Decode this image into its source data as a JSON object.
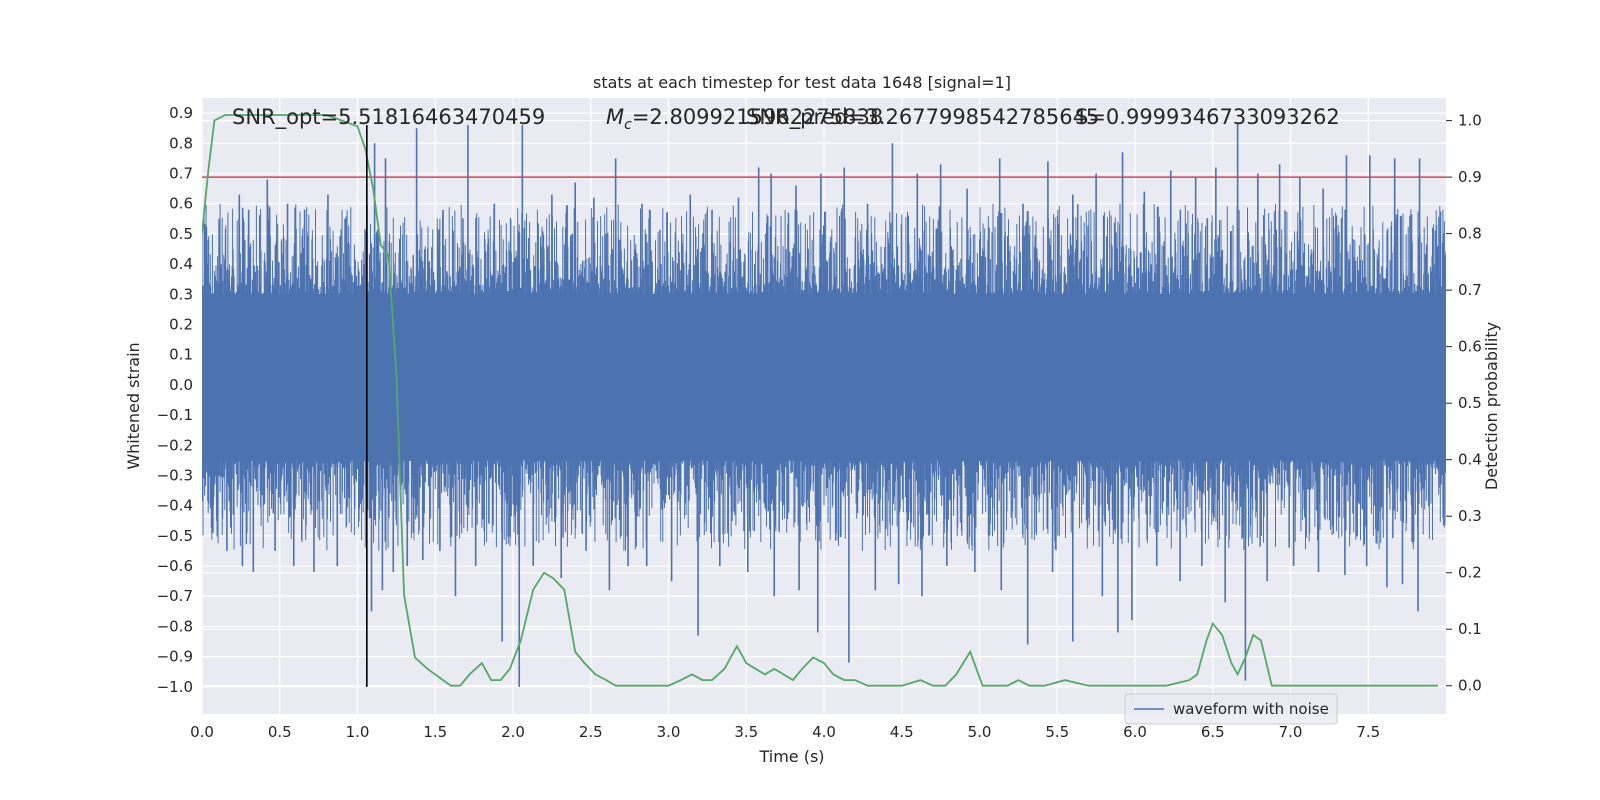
{
  "chart_data": {
    "type": "line",
    "title": "stats at each timestep for test data 1648 [signal=1]",
    "xlabel": "Time (s)",
    "ylabel": "Whitened strain",
    "y2label": "Detection probability",
    "xlim": [
      0.0,
      8.0
    ],
    "ylim": [
      -1.09,
      0.95
    ],
    "y2lim": [
      -0.05,
      1.04
    ],
    "x_ticks": [
      "0.0",
      "0.5",
      "1.0",
      "1.5",
      "2.0",
      "2.5",
      "3.0",
      "3.5",
      "4.0",
      "4.5",
      "5.0",
      "5.5",
      "6.0",
      "6.5",
      "7.0",
      "7.5"
    ],
    "y_ticks": [
      "0.9",
      "0.8",
      "0.7",
      "0.6",
      "0.5",
      "0.4",
      "0.3",
      "0.2",
      "0.1",
      "0.0",
      "-0.1",
      "-0.2",
      "-0.3",
      "-0.4",
      "-0.5",
      "-0.6",
      "-0.7",
      "-0.8",
      "-0.9",
      "-1.0"
    ],
    "y2_ticks": [
      "1.0",
      "0.9",
      "0.8",
      "0.7",
      "0.6",
      "0.5",
      "0.4",
      "0.3",
      "0.2",
      "0.1",
      "0.0"
    ],
    "grid": true,
    "legend": {
      "position": "bottom-right",
      "entries": [
        "waveform with noise"
      ]
    },
    "annotations": {
      "snr_opt": "SNR_opt=5.51816463470459",
      "mchirp_prefix": "M",
      "mchirp_sub": "c",
      "mchirp_value": "=2.8099215962275838",
      "snr_pred": "SNR_pred=3.2677998542785645",
      "score": "S=0.9999346733093262"
    },
    "threshold": {
      "y2": 0.9,
      "color": "#c44e52"
    },
    "merger_time": {
      "x": 1.06,
      "y_from": -1.0,
      "y_to": 0.86,
      "color": "#000000"
    },
    "series": [
      {
        "name": "waveform with noise",
        "color": "#4c72b0",
        "kind": "noise",
        "bulk": {
          "high": 0.3,
          "low": -0.25
        },
        "x_range": [
          0.0,
          8.0
        ],
        "spikes": [
          [
            0.04,
            0.48
          ],
          [
            0.11,
            0.55
          ],
          [
            0.24,
            0.63
          ],
          [
            0.3,
            0.58
          ],
          [
            0.42,
            0.68
          ],
          [
            0.55,
            0.6
          ],
          [
            0.66,
            0.58
          ],
          [
            0.81,
            0.63
          ],
          [
            0.92,
            0.55
          ],
          [
            1.11,
            0.8
          ],
          [
            1.18,
            0.75
          ],
          [
            1.38,
            0.85
          ],
          [
            1.55,
            0.58
          ],
          [
            1.71,
            0.86
          ],
          [
            1.88,
            0.6
          ],
          [
            2.06,
            0.86
          ],
          [
            2.25,
            0.63
          ],
          [
            2.4,
            0.67
          ],
          [
            2.52,
            0.62
          ],
          [
            2.66,
            0.75
          ],
          [
            2.83,
            0.6
          ],
          [
            2.99,
            0.57
          ],
          [
            3.14,
            0.63
          ],
          [
            3.28,
            0.58
          ],
          [
            3.45,
            0.62
          ],
          [
            3.58,
            0.72
          ],
          [
            3.66,
            0.7
          ],
          [
            3.82,
            0.66
          ],
          [
            3.98,
            0.7
          ],
          [
            4.13,
            0.72
          ],
          [
            4.28,
            0.6
          ],
          [
            4.44,
            0.8
          ],
          [
            4.6,
            0.7
          ],
          [
            4.75,
            0.73
          ],
          [
            4.92,
            0.65
          ],
          [
            5.13,
            0.75
          ],
          [
            5.28,
            0.6
          ],
          [
            5.44,
            0.74
          ],
          [
            5.6,
            0.63
          ],
          [
            5.75,
            0.7
          ],
          [
            5.92,
            0.77
          ],
          [
            6.06,
            0.64
          ],
          [
            6.23,
            0.71
          ],
          [
            6.39,
            0.69
          ],
          [
            6.52,
            0.72
          ],
          [
            6.66,
            0.87
          ],
          [
            6.79,
            0.7
          ],
          [
            6.93,
            0.73
          ],
          [
            7.06,
            0.69
          ],
          [
            7.21,
            0.65
          ],
          [
            7.36,
            0.76
          ],
          [
            7.51,
            0.76
          ],
          [
            7.67,
            0.75
          ],
          [
            7.83,
            0.75
          ],
          [
            0.07,
            -0.49
          ],
          [
            0.16,
            -0.55
          ],
          [
            0.26,
            -0.6
          ],
          [
            0.33,
            -0.62
          ],
          [
            0.47,
            -0.55
          ],
          [
            0.59,
            -0.6
          ],
          [
            0.72,
            -0.62
          ],
          [
            0.87,
            -0.6
          ],
          [
            1.09,
            -0.75
          ],
          [
            1.16,
            -0.68
          ],
          [
            1.23,
            -0.62
          ],
          [
            1.32,
            -0.6
          ],
          [
            1.42,
            -0.58
          ],
          [
            1.53,
            -0.55
          ],
          [
            1.63,
            -0.7
          ],
          [
            1.76,
            -0.6
          ],
          [
            1.93,
            -0.85
          ],
          [
            2.04,
            -1.0
          ],
          [
            2.13,
            -0.6
          ],
          [
            2.31,
            -0.64
          ],
          [
            2.47,
            -0.55
          ],
          [
            2.62,
            -0.68
          ],
          [
            2.74,
            -0.6
          ],
          [
            2.86,
            -0.6
          ],
          [
            3.02,
            -0.65
          ],
          [
            3.19,
            -0.83
          ],
          [
            3.33,
            -0.6
          ],
          [
            3.51,
            -0.62
          ],
          [
            3.68,
            -0.7
          ],
          [
            3.84,
            -0.68
          ],
          [
            3.96,
            -0.82
          ],
          [
            4.16,
            -0.92
          ],
          [
            4.33,
            -0.68
          ],
          [
            4.48,
            -0.66
          ],
          [
            4.63,
            -0.7
          ],
          [
            4.79,
            -0.6
          ],
          [
            4.97,
            -0.62
          ],
          [
            5.14,
            -0.68
          ],
          [
            5.31,
            -0.86
          ],
          [
            5.47,
            -0.62
          ],
          [
            5.6,
            -0.85
          ],
          [
            5.79,
            -0.7
          ],
          [
            5.89,
            -0.82
          ],
          [
            5.98,
            -0.78
          ],
          [
            6.14,
            -0.6
          ],
          [
            6.29,
            -0.65
          ],
          [
            6.43,
            -0.6
          ],
          [
            6.58,
            -0.72
          ],
          [
            6.71,
            -0.98
          ],
          [
            6.85,
            -0.65
          ],
          [
            7.02,
            -0.6
          ],
          [
            7.18,
            -0.62
          ],
          [
            7.35,
            -0.63
          ],
          [
            7.49,
            -0.6
          ],
          [
            7.62,
            -0.67
          ],
          [
            7.72,
            -0.66
          ],
          [
            7.82,
            -0.75
          ]
        ]
      },
      {
        "name": "",
        "color": "#55a868",
        "axis": "y2",
        "x": [
          0.0,
          0.04,
          0.08,
          0.15,
          0.3,
          0.5,
          0.7,
          0.8,
          0.9,
          1.0,
          1.05,
          1.1,
          1.15,
          1.2,
          1.25,
          1.3,
          1.37,
          1.45,
          1.55,
          1.6,
          1.66,
          1.72,
          1.8,
          1.86,
          1.92,
          1.98,
          2.05,
          2.13,
          2.2,
          2.26,
          2.33,
          2.4,
          2.46,
          2.53,
          2.6,
          2.66,
          2.72,
          2.85,
          3.0,
          3.08,
          3.15,
          3.22,
          3.28,
          3.36,
          3.44,
          3.5,
          3.56,
          3.62,
          3.68,
          3.74,
          3.8,
          3.86,
          3.93,
          4.0,
          4.06,
          4.13,
          4.2,
          4.28,
          4.36,
          4.5,
          4.62,
          4.7,
          4.78,
          4.85,
          4.94,
          5.02,
          5.1,
          5.18,
          5.25,
          5.32,
          5.42,
          5.55,
          5.7,
          5.9,
          6.0,
          6.2,
          6.35,
          6.4,
          6.46,
          6.5,
          6.56,
          6.62,
          6.66,
          6.71,
          6.76,
          6.81,
          6.88,
          7.0,
          7.2,
          7.5,
          7.6,
          7.8,
          7.95
        ],
        "values": [
          0.8,
          0.91,
          1.0,
          1.01,
          1.01,
          1.01,
          1.01,
          1.01,
          1.0,
          0.99,
          0.95,
          0.88,
          0.78,
          0.76,
          0.55,
          0.16,
          0.05,
          0.03,
          0.01,
          0.0,
          0.0,
          0.02,
          0.04,
          0.01,
          0.01,
          0.03,
          0.08,
          0.17,
          0.2,
          0.19,
          0.17,
          0.06,
          0.04,
          0.02,
          0.01,
          0.0,
          0.0,
          0.0,
          0.0,
          0.01,
          0.02,
          0.01,
          0.01,
          0.03,
          0.07,
          0.04,
          0.03,
          0.02,
          0.03,
          0.02,
          0.01,
          0.03,
          0.05,
          0.04,
          0.02,
          0.01,
          0.01,
          0.0,
          0.0,
          0.0,
          0.01,
          0.0,
          0.0,
          0.02,
          0.06,
          0.0,
          0.0,
          0.0,
          0.01,
          0.0,
          0.0,
          0.01,
          0.0,
          0.0,
          0.0,
          0.0,
          0.01,
          0.02,
          0.08,
          0.11,
          0.09,
          0.04,
          0.02,
          0.05,
          0.09,
          0.08,
          0.0,
          0.0,
          0.0,
          0.0,
          0.0,
          0.0,
          0.0
        ]
      }
    ]
  }
}
